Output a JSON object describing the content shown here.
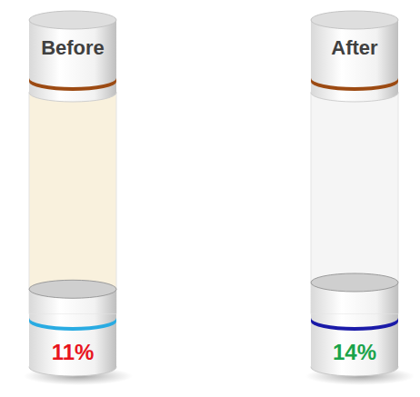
{
  "chart_data": {
    "type": "bar",
    "categories": [
      "Before",
      "After"
    ],
    "values": [
      11,
      14
    ],
    "value_labels": [
      "11%",
      "14%"
    ],
    "colors": [
      "#29abe2",
      "#1a1aa8"
    ],
    "ylim": [
      0,
      100
    ],
    "data_labels": true,
    "tick_labels": false
  }
}
